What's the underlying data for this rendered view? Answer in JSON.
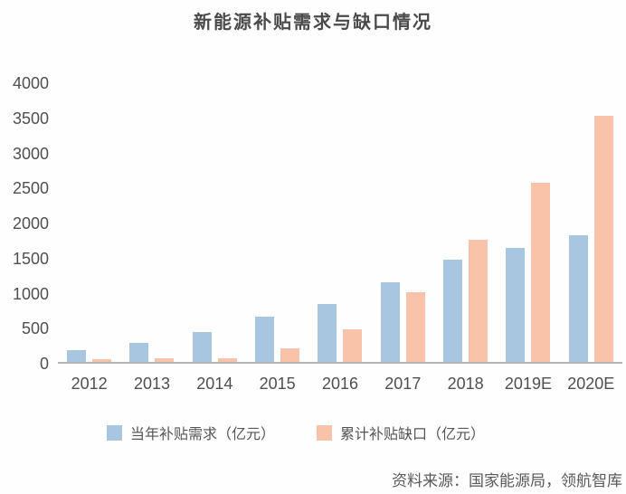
{
  "title": "新能源补贴需求与缺口情况",
  "source_note": "资料来源：国家能源局，领航智库",
  "colors": {
    "demand_bar": "#A8C6E0",
    "gap_bar": "#F9C3AA",
    "axis_line": "#b3b3b3",
    "text": "#4f4f4f"
  },
  "chart_data": {
    "type": "bar",
    "title": "新能源补贴需求与缺口情况",
    "categories": [
      "2012",
      "2013",
      "2014",
      "2015",
      "2016",
      "2017",
      "2018",
      "2019E",
      "2020E"
    ],
    "series": [
      {
        "key": "demand",
        "name": "当年补贴需求（亿元）",
        "color": "#A8C6E0",
        "values": [
          170,
          270,
          430,
          640,
          830,
          1130,
          1460,
          1630,
          1810
        ]
      },
      {
        "key": "gap",
        "name": "累计补贴缺口（亿元）",
        "color": "#F9C3AA",
        "values": [
          40,
          50,
          50,
          190,
          470,
          1000,
          1740,
          2550,
          3510
        ]
      }
    ],
    "xlabel": "",
    "ylabel": "",
    "ylim": [
      0,
      4000
    ],
    "yticks": [
      0,
      500,
      1000,
      1500,
      2000,
      2500,
      3000,
      3500,
      4000
    ],
    "grid": false,
    "legend_position": "bottom"
  }
}
